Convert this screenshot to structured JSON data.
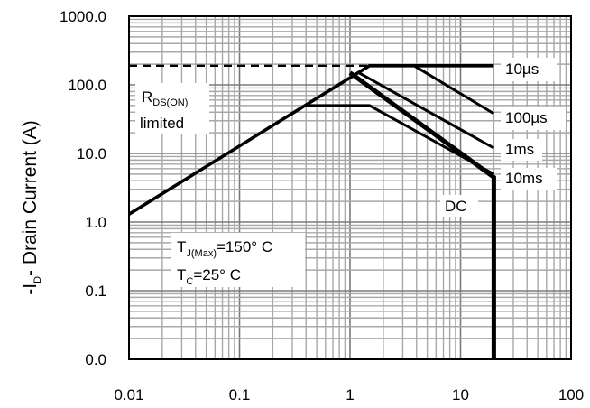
{
  "chart_data": {
    "type": "line",
    "title": "",
    "ylabel_parts": {
      "main": "-I",
      "sub": "D",
      "rest": "- Drain Current (A)"
    },
    "xlabel": "",
    "x_scale": "log",
    "y_scale": "log",
    "xlim": [
      0.01,
      100
    ],
    "ylim": [
      0.0,
      1000.0
    ],
    "x_ticks": [
      "0.01",
      "0.1",
      "1",
      "10",
      "100"
    ],
    "y_ticks": [
      "0.0",
      "0.1",
      "1.0",
      "10.0",
      "100.0",
      "1000.0"
    ],
    "grid": true,
    "series": [
      {
        "name": "10µs",
        "points": [
          [
            0.01,
            1.3
          ],
          [
            1.5,
            190
          ],
          [
            20,
            190
          ]
        ]
      },
      {
        "name": "100µs",
        "points": [
          [
            1.5,
            190
          ],
          [
            3.8,
            190
          ],
          [
            20,
            38
          ]
        ]
      },
      {
        "name": "1ms",
        "points": [
          [
            1.2,
            150
          ],
          [
            20,
            12
          ]
        ]
      },
      {
        "name": "10ms",
        "points": [
          [
            0.4,
            50
          ],
          [
            1.5,
            50
          ],
          [
            20,
            5
          ]
        ]
      },
      {
        "name": "DC",
        "points": [
          [
            1.0,
            150
          ],
          [
            20,
            4.5
          ],
          [
            20,
            0.0
          ]
        ]
      }
    ],
    "dashed_limit": {
      "y": 190,
      "x_range": [
        0.01,
        1.5
      ]
    },
    "annotations": {
      "rds": {
        "main": "R",
        "sub": "DS(ON)",
        "line2": "limited"
      },
      "tj": {
        "main": "T",
        "sub": "J(Max)",
        "rest": "=150° C"
      },
      "tc": {
        "main": "T",
        "sub": "C",
        "rest": "=25° C"
      }
    }
  }
}
